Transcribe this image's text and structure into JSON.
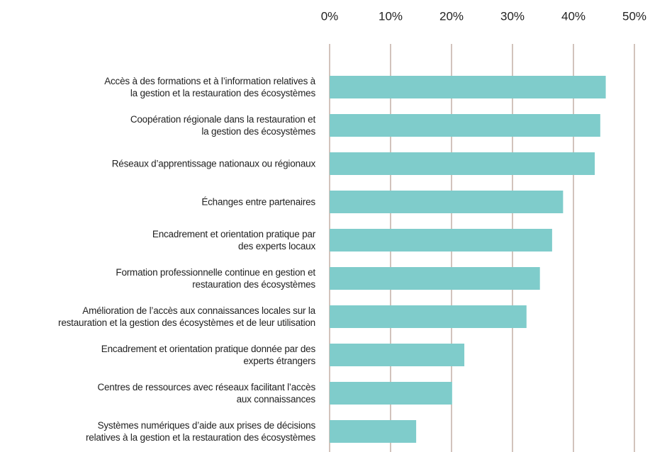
{
  "chart_data": {
    "type": "barh",
    "categories": [
      "Accès à des formations et à l’information relatives à\nla gestion et la restauration des écosystèmes",
      "Coopération régionale dans la restauration et\nla gestion des écosystèmes",
      "Réseaux d’apprentissage nationaux ou régionaux",
      "Échanges entre partenaires",
      "Encadrement et orientation pratique par\ndes experts locaux",
      "Formation professionnelle continue en gestion et\nrestauration des écosystèmes",
      "Amélioration de l’accès aux connaissances locales sur la\nrestauration et la gestion des écosystèmes et de leur utilisation",
      "Encadrement et orientation pratique donnée par des\nexperts étrangers",
      "Centres de ressources avec réseaux facilitant l’accès\naux connaissances",
      "Systèmes numériques d’aide aux prises de décisions\nrelatives à la gestion et la restauration des écosystèmes"
    ],
    "values": [
      45.3,
      44.4,
      43.5,
      38.3,
      36.5,
      34.5,
      32.3,
      22.1,
      20.1,
      14.2
    ],
    "color": "#7fcccb",
    "xlim": [
      0,
      50
    ],
    "xticks": [
      {
        "value": 0,
        "label": "0%"
      },
      {
        "value": 10,
        "label": "10%"
      },
      {
        "value": 20,
        "label": "20%"
      },
      {
        "value": 30,
        "label": "30%"
      },
      {
        "value": 40,
        "label": "40%"
      },
      {
        "value": 50,
        "label": "50%"
      }
    ],
    "grid": true,
    "grid_color": "#a4877a"
  }
}
